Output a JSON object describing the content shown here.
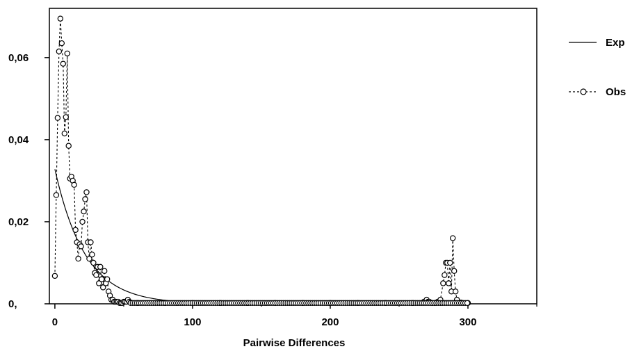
{
  "chart_data": {
    "type": "line",
    "title": "",
    "xlabel": "Pairwise Differences",
    "ylabel": "",
    "xlim": [
      -4,
      350
    ],
    "ylim": [
      0,
      0.072
    ],
    "x_ticks": [
      0,
      100,
      200,
      300
    ],
    "x_tick_labels": [
      "0",
      "100",
      "200",
      "300"
    ],
    "y_ticks": [
      0,
      0.02,
      0.04,
      0.06
    ],
    "y_tick_labels": [
      "0,",
      "0,02",
      "0,04",
      "0,06"
    ],
    "grid": false,
    "legend_position": "right",
    "series": [
      {
        "name": "Exp",
        "style": "solid",
        "color": "#000000",
        "model": {
          "form": "exponential",
          "y0": 0.0328,
          "decay_length": 22
        },
        "x_range": [
          0,
          122
        ]
      },
      {
        "name": "Obs",
        "style": "dashed",
        "color": "#000000",
        "marker": "circle",
        "x": [
          0,
          1,
          2,
          3,
          4,
          5,
          6,
          7,
          8,
          9,
          10,
          11,
          12,
          13,
          14,
          15,
          16,
          17,
          18,
          19,
          20,
          21,
          22,
          23,
          24,
          25,
          26,
          27,
          28,
          29,
          30,
          31,
          32,
          33,
          34,
          35,
          36,
          37,
          38,
          39,
          40,
          41,
          42,
          43,
          44,
          45,
          46,
          47,
          48,
          49,
          50,
          51,
          52,
          53,
          54,
          55,
          60,
          80,
          100,
          120,
          140,
          160,
          180,
          200,
          220,
          240,
          260,
          268,
          270,
          271,
          272,
          274,
          276,
          278,
          280,
          282,
          283,
          284,
          285,
          286,
          287,
          288,
          289,
          290,
          291,
          292,
          295,
          300
        ],
        "y": [
          0.0068,
          0.0265,
          0.0453,
          0.0615,
          0.0695,
          0.0635,
          0.0585,
          0.0415,
          0.0455,
          0.061,
          0.0385,
          0.0305,
          0.031,
          0.03,
          0.029,
          0.018,
          0.015,
          0.011,
          0.0145,
          0.014,
          0.02,
          0.0225,
          0.0255,
          0.0272,
          0.015,
          0.011,
          0.015,
          0.012,
          0.01,
          0.0075,
          0.007,
          0.009,
          0.005,
          0.009,
          0.006,
          0.004,
          0.008,
          0.005,
          0.006,
          0.003,
          0.002,
          0.001,
          0.001,
          0.0005,
          0.0005,
          0.0005,
          0.0005,
          0.0002,
          0.0002,
          0.0002,
          0.0005,
          0.0005,
          0.0005,
          0.001,
          0.0005,
          0.0003,
          0.0002,
          0.0002,
          0.0002,
          0.0002,
          0.0002,
          0.0002,
          0.0002,
          0.0002,
          0.0002,
          0.0002,
          0.0002,
          0.0005,
          0.001,
          0.0005,
          0.0005,
          0.0002,
          0.0002,
          0.0005,
          0.001,
          0.005,
          0.007,
          0.01,
          0.01,
          0.005,
          0.01,
          0.003,
          0.016,
          0.008,
          0.003,
          0.001,
          0.0003,
          0.0002
        ]
      }
    ]
  }
}
